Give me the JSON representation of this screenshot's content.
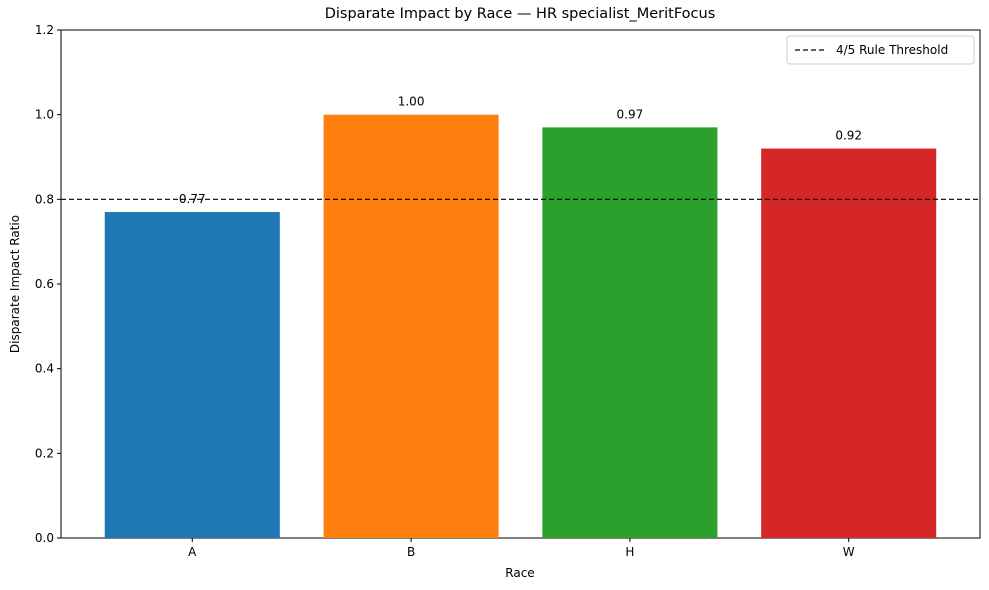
{
  "chart_data": {
    "type": "bar",
    "title": "Disparate Impact by Race — HR specialist_MeritFocus",
    "xlabel": "Race",
    "ylabel": "Disparate Impact Ratio",
    "categories": [
      "A",
      "B",
      "H",
      "W"
    ],
    "values": [
      0.77,
      1.0,
      0.97,
      0.92
    ],
    "value_labels": [
      "0.77",
      "1.00",
      "0.97",
      "0.92"
    ],
    "colors": [
      "#1f77b4",
      "#ff7f0e",
      "#2ca02c",
      "#d62728"
    ],
    "ylim": [
      0,
      1.2
    ],
    "yticks": [
      "0.0",
      "0.2",
      "0.4",
      "0.6",
      "0.8",
      "1.0",
      "1.2"
    ],
    "ytick_values": [
      0,
      0.2,
      0.4,
      0.6,
      0.8,
      1.0,
      1.2
    ],
    "threshold": {
      "value": 0.8,
      "label": "4/5 Rule Threshold",
      "style": "dashed",
      "color": "#000000"
    },
    "legend": {
      "position": "top-right",
      "entries": [
        "4/5 Rule Threshold"
      ]
    },
    "grid": false
  }
}
